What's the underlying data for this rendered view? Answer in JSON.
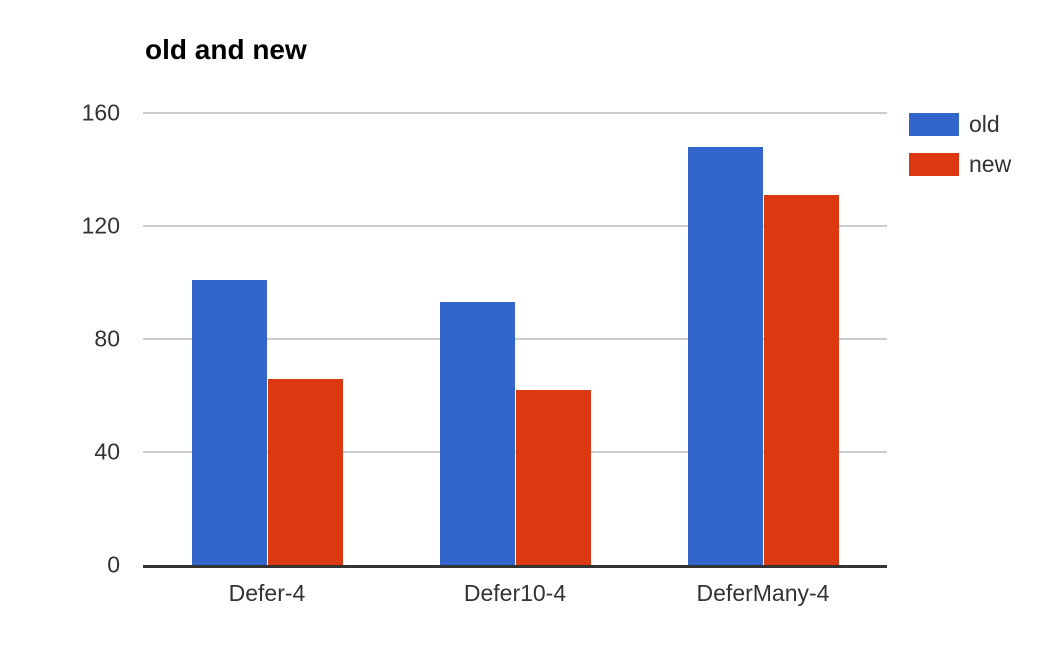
{
  "chart_data": {
    "type": "bar",
    "title": "old and new",
    "categories": [
      "Defer-4",
      "Defer10-4",
      "DeferMany-4"
    ],
    "series": [
      {
        "name": "old",
        "color": "#3366CC",
        "values": [
          101,
          93,
          148
        ]
      },
      {
        "name": "new",
        "color": "#DC3912",
        "values": [
          66,
          62,
          131
        ]
      }
    ],
    "xlabel": "",
    "ylabel": "",
    "ylim": [
      0,
      160
    ],
    "yticks": [
      0,
      40,
      80,
      120,
      160
    ],
    "grid": true,
    "legend_position": "right",
    "background_color": "#ffffff",
    "gridline_color": "#cccccc",
    "axis_line_color": "#333333",
    "label_color": "#333333",
    "title_color": "#000000"
  }
}
